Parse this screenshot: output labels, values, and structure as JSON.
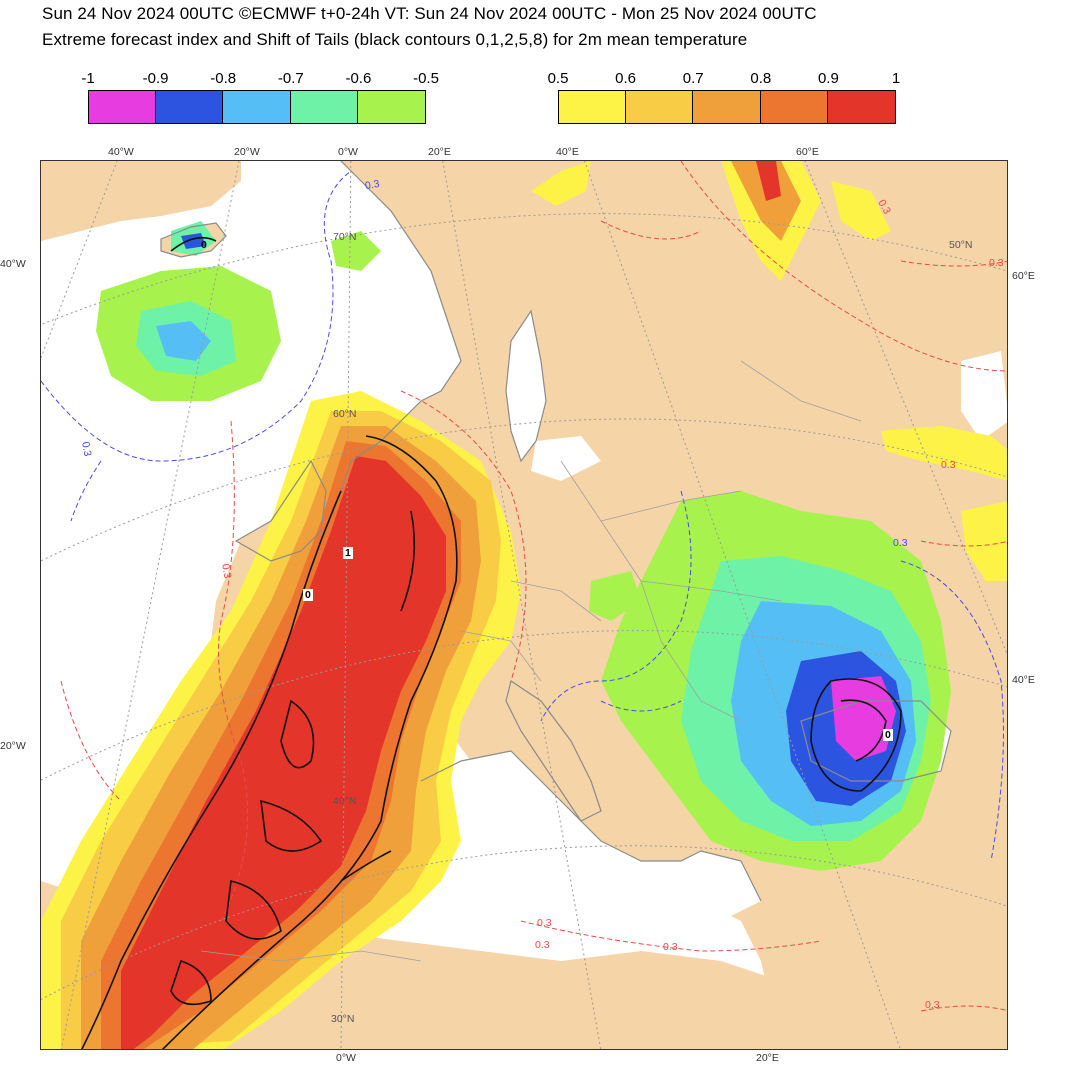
{
  "header": {
    "line1": "Sun 24 Nov 2024 00UTC ©ECMWF t+0-24h  VT: Sun 24 Nov 2024 00UTC - Mon 25 Nov 2024 00UTC",
    "line2": "Extreme forecast index and Shift of Tails (black contours 0,1,2,5,8) for 2m mean temperature"
  },
  "legend_negative": {
    "ticks": [
      "-1",
      "-0.9",
      "-0.8",
      "-0.7",
      "-0.6",
      "-0.5"
    ],
    "colors": [
      "#e63ce0",
      "#2b55e0",
      "#55bff5",
      "#6ef2a8",
      "#a8f24e"
    ]
  },
  "legend_positive": {
    "ticks": [
      "0.5",
      "0.6",
      "0.7",
      "0.8",
      "0.9",
      "1"
    ],
    "colors": [
      "#fdf347",
      "#f9cc45",
      "#f0a03a",
      "#ec7530",
      "#e4352a"
    ]
  },
  "map": {
    "land_color": "#f5d4a7",
    "sea_color": "#ffffff",
    "top_labels": [
      "40°W",
      "20°W",
      "0°W",
      "20°E",
      "40°E",
      "60°E"
    ],
    "bottom_labels": [
      "0°W",
      "20°E"
    ],
    "left_labels": [
      "40°W",
      "20°W"
    ],
    "right_labels": [
      "60°E",
      "40°E"
    ],
    "lat_labels": [
      "70°N",
      "60°N",
      "50°N",
      "40°N",
      "30°N"
    ],
    "contour_labels": [
      "0.3",
      "0.3",
      "0.3",
      "0.3",
      "0.3",
      "0.3",
      "0.3",
      "0.3",
      "0.3",
      "0.3",
      "0.3"
    ],
    "sot_labels": [
      "1",
      "0",
      "0",
      "0"
    ]
  }
}
